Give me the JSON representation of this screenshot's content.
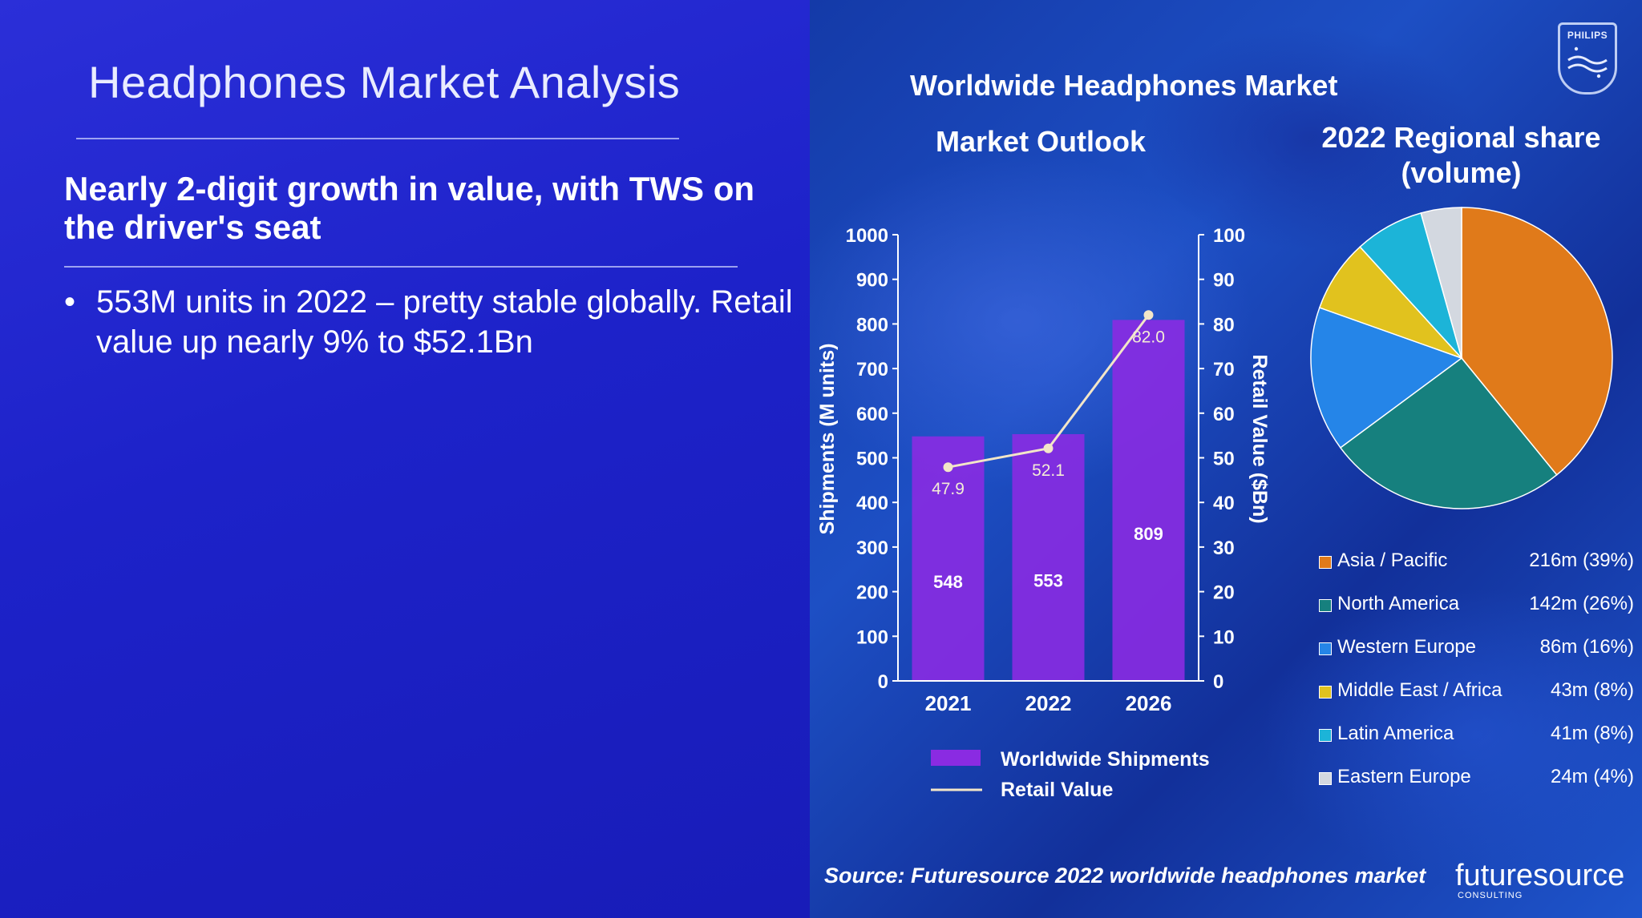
{
  "slide": {
    "title": "Headphones Market Analysis",
    "subtitle": "Nearly 2-digit growth in value, with TWS on the driver's seat",
    "bullet": "553M units in 2022 – pretty stable globally. Retail value up nearly 9% to $52.1Bn",
    "bullet_symbol": "•"
  },
  "panel": {
    "title": "Worldwide Headphones Market",
    "source": "Source: Futuresource 2022 worldwide headphones market",
    "brand_top": "PHILIPS",
    "brand_bottom": "futuresource",
    "brand_bottom_sub": "CONSULTING"
  },
  "colors": {
    "bar": "#8a2be2",
    "line": "#f3e6c8",
    "asia_pacific": "#e07a1a",
    "north_america": "#16807e",
    "western_europe": "#2585e8",
    "middle_east_africa": "#e1c21e",
    "latin_america": "#1cb4d8",
    "eastern_europe": "#d3d8e0"
  },
  "chart_data": [
    {
      "type": "bar",
      "title": "Market Outlook",
      "categories": [
        "2021",
        "2022",
        "2026"
      ],
      "ylabel": "Shipments (M units)",
      "y2label": "Retail Value ($Bn)",
      "ylim": [
        0,
        1000
      ],
      "y2lim": [
        0,
        100
      ],
      "yticks": [
        0,
        100,
        200,
        300,
        400,
        500,
        600,
        700,
        800,
        900,
        1000
      ],
      "y2ticks": [
        0,
        10,
        20,
        30,
        40,
        50,
        60,
        70,
        80,
        90,
        100
      ],
      "legend_position": "bottom",
      "series": [
        {
          "name": "Worldwide Shipments",
          "type": "bar",
          "axis": "left",
          "values": [
            548,
            553,
            809
          ],
          "labels": [
            "548",
            "553",
            "809"
          ]
        },
        {
          "name": "Retail Value",
          "type": "line",
          "axis": "right",
          "values": [
            47.9,
            52.1,
            82.0
          ],
          "labels": [
            "47.9",
            "52.1",
            "82.0"
          ]
        }
      ]
    },
    {
      "type": "pie",
      "title": "2022 Regional share (volume)",
      "legend_position": "bottom",
      "slices": [
        {
          "label": "Asia / Pacific",
          "value": 216,
          "display": "216m (39%)",
          "color_key": "asia_pacific"
        },
        {
          "label": "North America",
          "value": 142,
          "display": "142m (26%)",
          "color_key": "north_america"
        },
        {
          "label": "Western Europe",
          "value": 86,
          "display": "86m (16%)",
          "color_key": "western_europe"
        },
        {
          "label": "Middle East / Africa",
          "value": 43,
          "display": "43m (8%)",
          "color_key": "middle_east_africa"
        },
        {
          "label": "Latin America",
          "value": 41,
          "display": "41m (8%)",
          "color_key": "latin_america"
        },
        {
          "label": "Eastern Europe",
          "value": 24,
          "display": "24m (4%)",
          "color_key": "eastern_europe"
        }
      ]
    }
  ]
}
